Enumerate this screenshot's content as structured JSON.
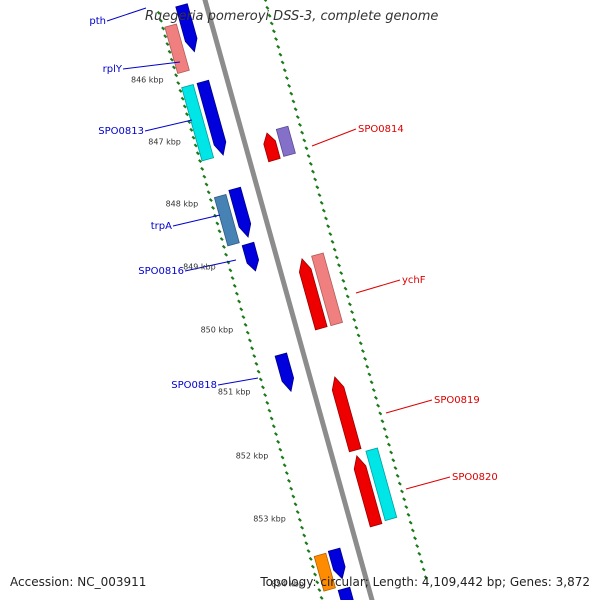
{
  "title": "Ruegeria pomeroyi DSS-3, complete genome",
  "footer": {
    "accession": "Accession: NC_003911",
    "summary": "Topology: circular; Length: 4,109,442 bp; Genes: 3,872"
  },
  "colors": {
    "backbone": "#8c8c8c",
    "ticks": "#1a7a1a",
    "forward_label": "#0000cc",
    "reverse_label": "#dd0000"
  },
  "kbp_marks": [
    "846 kbp",
    "847 kbp",
    "848 kbp",
    "849 kbp",
    "850 kbp",
    "851 kbp",
    "852 kbp",
    "853 kbp",
    "854 kbp"
  ],
  "gene_labels": {
    "forward": [
      "pth",
      "rplY",
      "SPO0813",
      "trpA",
      "SPO0816",
      "SPO0818"
    ],
    "reverse": [
      "SPO0814",
      "ychF",
      "SPO0819",
      "SPO0820"
    ]
  },
  "features": {
    "forward_genes": {
      "color": "#0000dd",
      "count": 8
    },
    "forward_cds": [
      {
        "color": "#f08080"
      },
      {
        "color": "#00e5e5"
      },
      {
        "color": "#4682b4"
      },
      {
        "color": "#ff8c00"
      }
    ],
    "reverse_genes": {
      "color": "#ee0000",
      "count": 4
    },
    "reverse_cds": [
      {
        "color": "#8470c8"
      },
      {
        "color": "#f08080"
      },
      {
        "color": "#00e5e5"
      }
    ]
  }
}
